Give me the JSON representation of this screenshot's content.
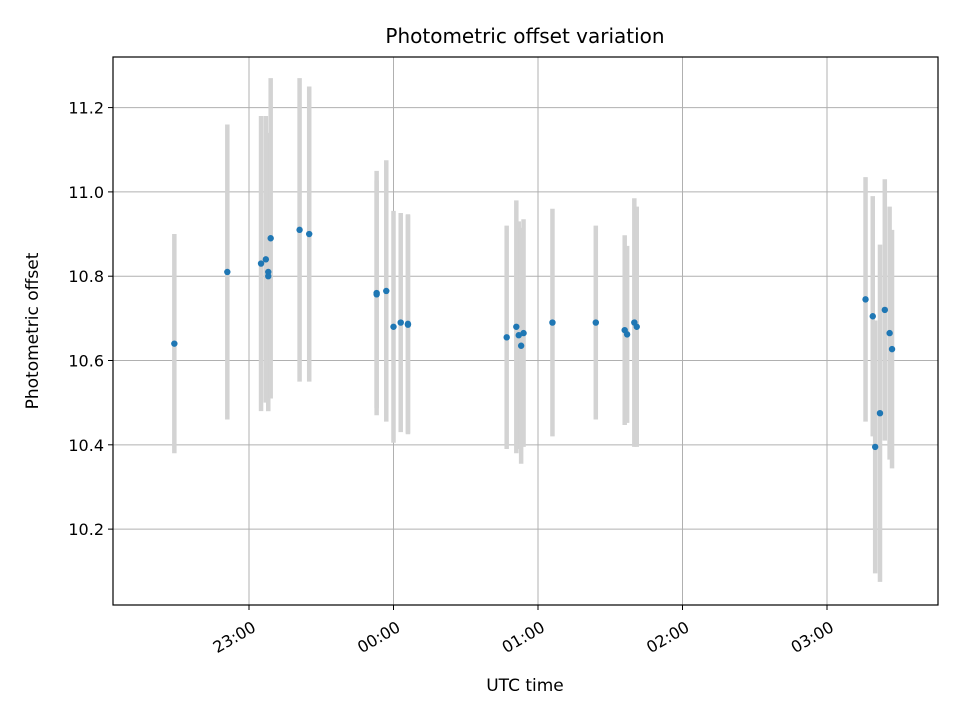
{
  "chart_data": {
    "type": "scatter",
    "title": "Photometric offset variation",
    "xlabel": "UTC time",
    "ylabel": "Photometric offset",
    "x_ticks": [
      "23:00",
      "00:00",
      "01:00",
      "02:00",
      "03:00"
    ],
    "y_ticks": [
      "10.2",
      "10.4",
      "10.6",
      "10.8",
      "11.0",
      "11.2"
    ],
    "ylim": [
      10.02,
      11.32
    ],
    "grid": true,
    "colors": {
      "point": "#1f77b4",
      "errorbar": "#d3d3d3",
      "grid": "#b0b0b0"
    },
    "points": [
      {
        "t": "22:29",
        "y": 10.64,
        "err": 0.26
      },
      {
        "t": "22:51",
        "y": 10.81,
        "err": 0.35
      },
      {
        "t": "23:05",
        "y": 10.83,
        "err": 0.35
      },
      {
        "t": "23:07",
        "y": 10.84,
        "err": 0.34
      },
      {
        "t": "23:08",
        "y": 10.81,
        "err": 0.33
      },
      {
        "t": "23:08",
        "y": 10.8,
        "err": 0.32
      },
      {
        "t": "23:09",
        "y": 10.89,
        "err": 0.38
      },
      {
        "t": "23:21",
        "y": 10.91,
        "err": 0.36
      },
      {
        "t": "23:25",
        "y": 10.9,
        "err": 0.35
      },
      {
        "t": "23:53",
        "y": 10.76,
        "err": 0.29
      },
      {
        "t": "23:53",
        "y": 10.757,
        "err": 0.27
      },
      {
        "t": "23:57",
        "y": 10.765,
        "err": 0.31
      },
      {
        "t": "00:00",
        "y": 10.68,
        "err": 0.275
      },
      {
        "t": "00:03",
        "y": 10.69,
        "err": 0.26
      },
      {
        "t": "00:06",
        "y": 10.687,
        "err": 0.26
      },
      {
        "t": "00:06",
        "y": 10.685,
        "err": 0.26
      },
      {
        "t": "00:47",
        "y": 10.655,
        "err": 0.265
      },
      {
        "t": "00:51",
        "y": 10.68,
        "err": 0.3
      },
      {
        "t": "00:52",
        "y": 10.66,
        "err": 0.27
      },
      {
        "t": "00:53",
        "y": 10.635,
        "err": 0.28
      },
      {
        "t": "00:54",
        "y": 10.665,
        "err": 0.27
      },
      {
        "t": "01:06",
        "y": 10.69,
        "err": 0.27
      },
      {
        "t": "01:24",
        "y": 10.69,
        "err": 0.23
      },
      {
        "t": "01:36",
        "y": 10.672,
        "err": 0.225
      },
      {
        "t": "01:37",
        "y": 10.662,
        "err": 0.21
      },
      {
        "t": "01:40",
        "y": 10.69,
        "err": 0.295
      },
      {
        "t": "01:41",
        "y": 10.68,
        "err": 0.285
      },
      {
        "t": "03:16",
        "y": 10.745,
        "err": 0.29
      },
      {
        "t": "03:19",
        "y": 10.705,
        "err": 0.285
      },
      {
        "t": "03:20",
        "y": 10.395,
        "err": 0.3
      },
      {
        "t": "03:22",
        "y": 10.475,
        "err": 0.4
      },
      {
        "t": "03:24",
        "y": 10.72,
        "err": 0.31
      },
      {
        "t": "03:26",
        "y": 10.665,
        "err": 0.3
      },
      {
        "t": "03:27",
        "y": 10.627,
        "err": 0.283
      }
    ]
  }
}
